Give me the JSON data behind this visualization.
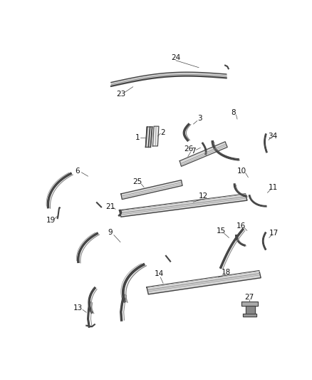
{
  "bg_color": "#ffffff",
  "lc": "#444444",
  "lc2": "#888888",
  "label_fs": 7.5,
  "figw": 4.38,
  "figh": 5.33,
  "dpi": 100
}
